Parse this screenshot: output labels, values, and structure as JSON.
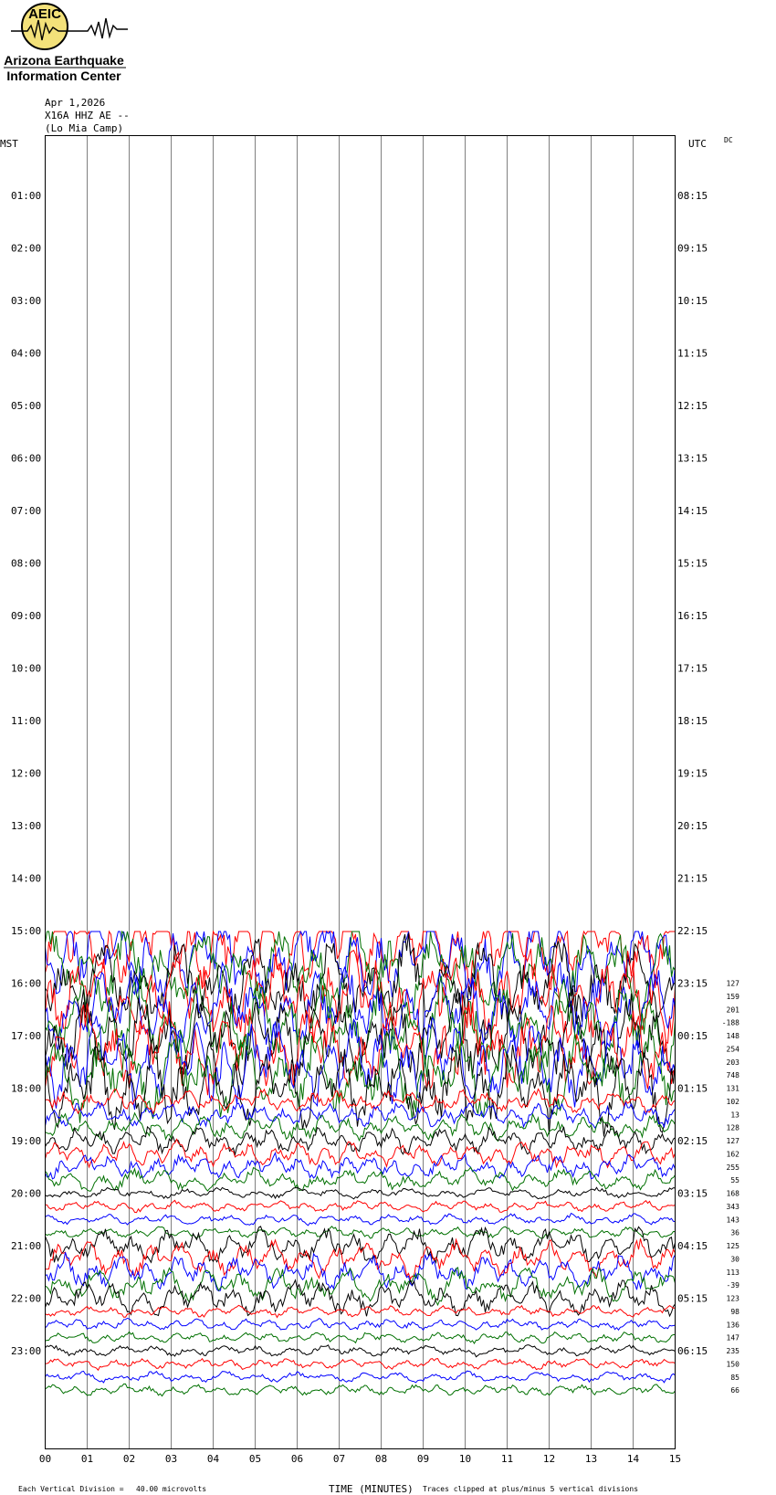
{
  "logo": {
    "badge_text": "AEIC",
    "line1": "Arizona Earthquake",
    "line2": "Information Center"
  },
  "header": {
    "date": "Apr 1,2026",
    "station": "X16A HHZ AE --",
    "location": "(Lo Mia Camp)"
  },
  "labels": {
    "left_tz": "MST",
    "right_tz": "UTC",
    "dc": "DC",
    "xlabel": "TIME (MINUTES)",
    "footer_left": "Each Vertical Division =",
    "footer_scale": "40.00 microvolts",
    "footer_right": "Traces clipped at plus/minus 5 vertical divisions"
  },
  "colors": {
    "trace_cycle": [
      "#000000",
      "#ff0000",
      "#0000ff",
      "#007000"
    ],
    "grid": "#808080"
  },
  "chart_data": {
    "type": "line",
    "x_ticks": [
      "00",
      "01",
      "02",
      "03",
      "04",
      "05",
      "06",
      "07",
      "08",
      "09",
      "10",
      "11",
      "12",
      "13",
      "14",
      "15"
    ],
    "xlim": [
      0,
      15
    ],
    "left_hour_labels": [
      "01:00",
      "02:00",
      "03:00",
      "04:00",
      "05:00",
      "06:00",
      "07:00",
      "08:00",
      "09:00",
      "10:00",
      "11:00",
      "12:00",
      "13:00",
      "14:00",
      "15:00",
      "16:00",
      "17:00",
      "18:00",
      "19:00",
      "20:00",
      "21:00",
      "22:00",
      "23:00"
    ],
    "right_hour_labels": [
      "08:15",
      "09:15",
      "10:15",
      "11:15",
      "12:15",
      "13:15",
      "14:15",
      "15:15",
      "16:15",
      "17:15",
      "18:15",
      "19:15",
      "20:15",
      "21:15",
      "22:15",
      "23:15",
      "00:15",
      "01:15",
      "02:15",
      "03:15",
      "04:15",
      "05:15",
      "06:15"
    ],
    "rows_per_hour": 4,
    "first_trace_row": 61,
    "total_rows": 96,
    "dc_offsets": [
      "127",
      "159",
      "201",
      "-188",
      "148",
      "254",
      "203",
      "748",
      "131",
      "102",
      "13",
      "128",
      "127",
      "162",
      "255",
      "55",
      "168",
      "343",
      "143",
      "36",
      "125",
      "30",
      "113",
      "-39",
      "123",
      "98",
      "136",
      "147",
      "235",
      "150",
      "85",
      "66"
    ],
    "clip_divisions": 5,
    "microvolts_per_division": 40.0
  }
}
